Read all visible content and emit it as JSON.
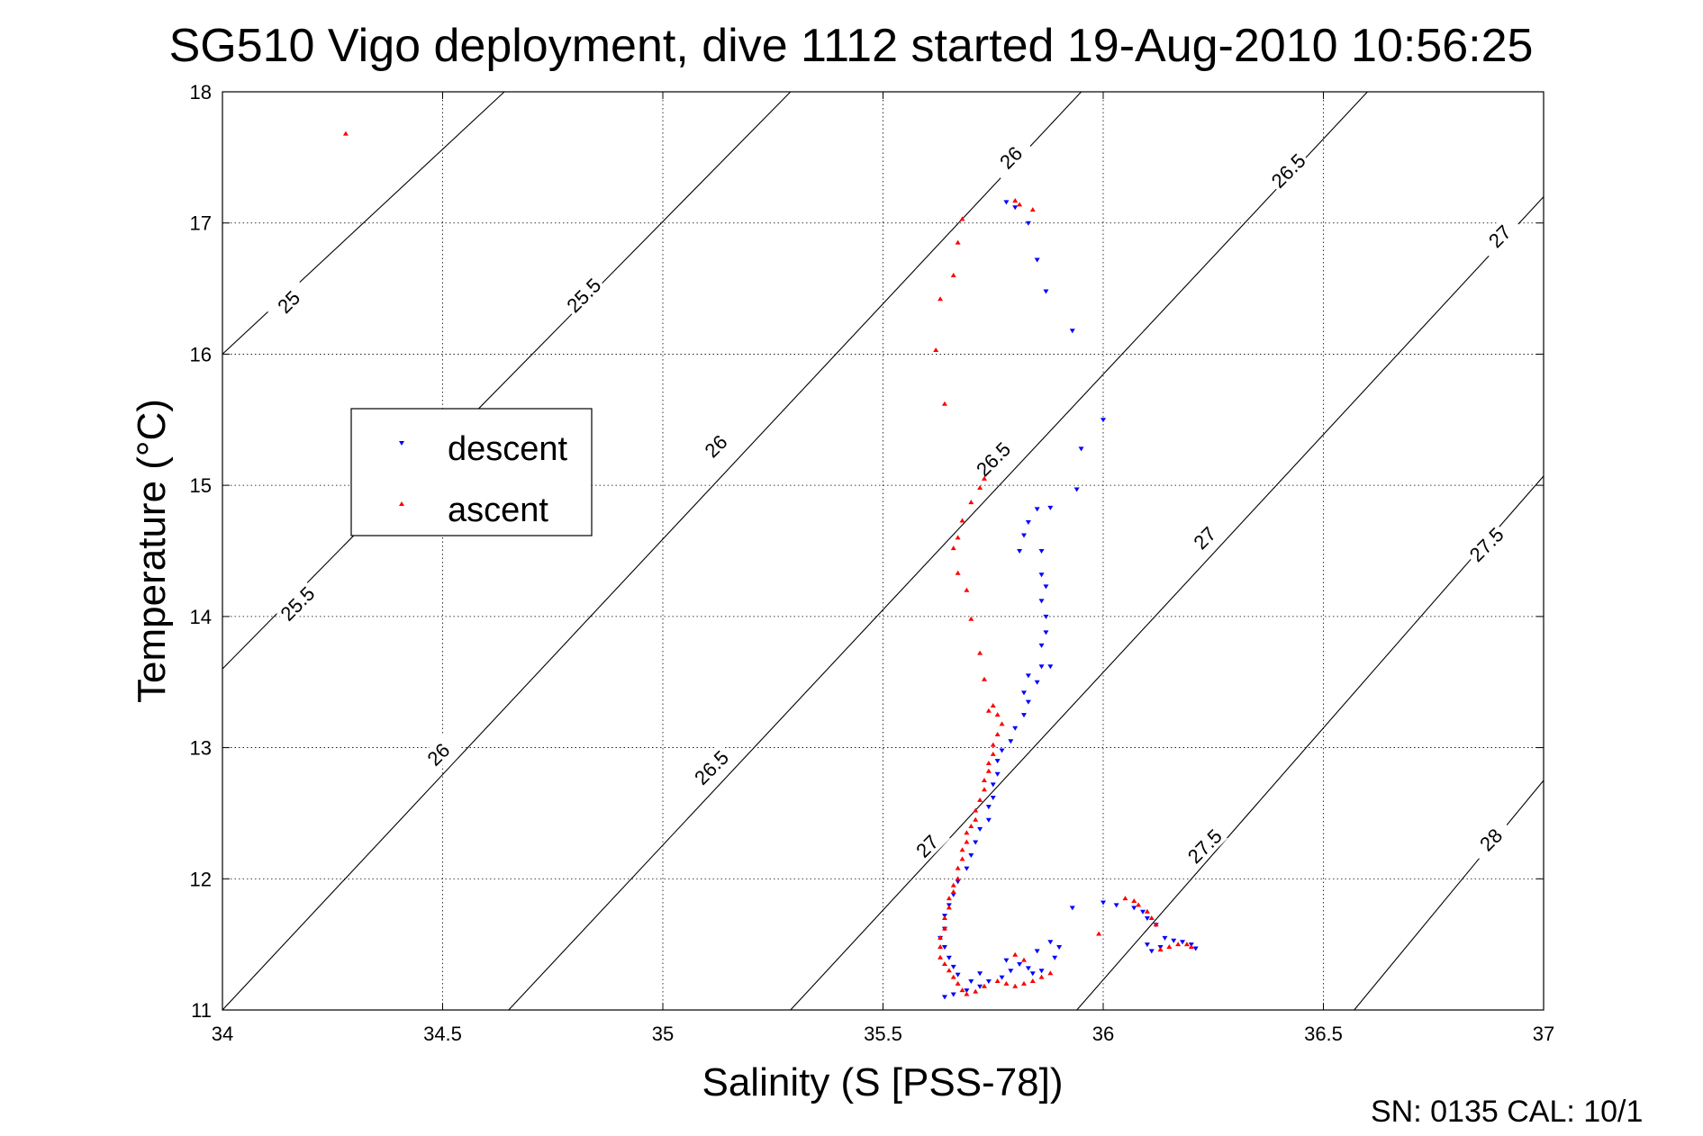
{
  "page": {
    "title": "SG510 Vigo deployment, dive 1112 started 19-Aug-2010 10:56:25",
    "footer": "SN: 0135  CAL: 10/1"
  },
  "chart_data": {
    "type": "scatter",
    "title": "SG510 Vigo deployment, dive 1112 started 19-Aug-2010 10:56:25",
    "xlabel": "Salinity (S [PSS-78])",
    "ylabel": "Temperature (°C)",
    "xlim": [
      34,
      37
    ],
    "ylim": [
      11,
      18
    ],
    "xticks": [
      34,
      34.5,
      35,
      35.5,
      36,
      36.5,
      37
    ],
    "xtick_labels": [
      "34",
      "34.5",
      "35",
      "35.5",
      "36",
      "36.5",
      "37"
    ],
    "yticks": [
      11,
      12,
      13,
      14,
      15,
      16,
      17,
      18
    ],
    "ytick_labels": [
      "11",
      "12",
      "13",
      "14",
      "15",
      "16",
      "17",
      "18"
    ],
    "grid": true,
    "grid_style": "dotted",
    "legend_position": "left-middle",
    "colors": {
      "descent": "#0000ff",
      "ascent": "#ff0000",
      "contour": "#000000"
    },
    "contours": [
      {
        "level": "25",
        "points": [
          [
            34.0,
            16.0
          ],
          [
            34.64,
            18.0
          ]
        ],
        "labels": [
          {
            "text": "25",
            "x": 34.15,
            "y": 16.4,
            "angle": -45
          }
        ]
      },
      {
        "level": "25.5",
        "points": [
          [
            34.0,
            13.6
          ],
          [
            35.29,
            18.0
          ]
        ],
        "labels": [
          {
            "text": "25.5",
            "x": 34.17,
            "y": 14.1,
            "angle": -45
          },
          {
            "text": "25.5",
            "x": 34.82,
            "y": 16.45,
            "angle": -45
          }
        ]
      },
      {
        "level": "26",
        "points": [
          [
            34.0,
            11.0
          ],
          [
            35.95,
            18.0
          ]
        ],
        "labels": [
          {
            "text": "26",
            "x": 34.49,
            "y": 12.95,
            "angle": -45
          },
          {
            "text": "26",
            "x": 35.12,
            "y": 15.3,
            "angle": -45
          },
          {
            "text": "26",
            "x": 35.79,
            "y": 17.5,
            "angle": -45
          }
        ]
      },
      {
        "level": "26.5",
        "points": [
          [
            34.65,
            11.0
          ],
          [
            36.6,
            18.0
          ]
        ],
        "labels": [
          {
            "text": "26.5",
            "x": 35.11,
            "y": 12.85,
            "angle": -45
          },
          {
            "text": "26.5",
            "x": 35.75,
            "y": 15.2,
            "angle": -45
          },
          {
            "text": "26.5",
            "x": 36.42,
            "y": 17.4,
            "angle": -45
          }
        ]
      },
      {
        "level": "27",
        "points": [
          [
            35.29,
            11.0
          ],
          [
            37.0,
            17.2
          ]
        ],
        "labels": [
          {
            "text": "27",
            "x": 35.6,
            "y": 12.25,
            "angle": -45
          },
          {
            "text": "27",
            "x": 36.23,
            "y": 14.6,
            "angle": -45
          },
          {
            "text": "27",
            "x": 36.9,
            "y": 16.9,
            "angle": -45
          }
        ]
      },
      {
        "level": "27.5",
        "points": [
          [
            35.94,
            11.0
          ],
          [
            37.0,
            15.07
          ]
        ],
        "labels": [
          {
            "text": "27.5",
            "x": 36.23,
            "y": 12.25,
            "angle": -45
          },
          {
            "text": "27.5",
            "x": 36.87,
            "y": 14.55,
            "angle": -45
          }
        ]
      },
      {
        "level": "28",
        "points": [
          [
            36.57,
            11.0
          ],
          [
            37.0,
            12.75
          ]
        ],
        "labels": [
          {
            "text": "28",
            "x": 36.88,
            "y": 12.3,
            "angle": -45
          }
        ]
      }
    ],
    "series": [
      {
        "name": "descent",
        "color": "#0000ff",
        "marker": "triangle-down",
        "points": [
          [
            35.78,
            17.16
          ],
          [
            35.8,
            17.12
          ],
          [
            35.83,
            17.0
          ],
          [
            35.85,
            16.72
          ],
          [
            35.87,
            16.48
          ],
          [
            35.93,
            16.18
          ],
          [
            36.0,
            15.5
          ],
          [
            35.95,
            15.28
          ],
          [
            35.94,
            14.97
          ],
          [
            35.88,
            14.83
          ],
          [
            35.85,
            14.82
          ],
          [
            35.83,
            14.72
          ],
          [
            35.82,
            14.62
          ],
          [
            35.81,
            14.5
          ],
          [
            35.86,
            14.5
          ],
          [
            35.86,
            14.32
          ],
          [
            35.87,
            14.23
          ],
          [
            35.86,
            14.12
          ],
          [
            35.87,
            14.0
          ],
          [
            35.87,
            13.88
          ],
          [
            35.86,
            13.78
          ],
          [
            35.86,
            13.62
          ],
          [
            35.88,
            13.62
          ],
          [
            35.83,
            13.55
          ],
          [
            35.85,
            13.5
          ],
          [
            35.82,
            13.42
          ],
          [
            35.83,
            13.35
          ],
          [
            35.82,
            13.25
          ],
          [
            35.8,
            13.15
          ],
          [
            35.79,
            13.05
          ],
          [
            35.77,
            12.98
          ],
          [
            35.76,
            12.9
          ],
          [
            35.76,
            12.8
          ],
          [
            35.75,
            12.72
          ],
          [
            35.75,
            12.62
          ],
          [
            35.74,
            12.55
          ],
          [
            35.74,
            12.45
          ],
          [
            35.72,
            12.38
          ],
          [
            35.71,
            12.28
          ],
          [
            35.7,
            12.18
          ],
          [
            35.69,
            12.08
          ],
          [
            35.67,
            11.98
          ],
          [
            35.66,
            11.88
          ],
          [
            35.65,
            11.8
          ],
          [
            35.64,
            11.72
          ],
          [
            35.64,
            11.62
          ],
          [
            35.63,
            11.55
          ],
          [
            35.64,
            11.48
          ],
          [
            35.65,
            11.4
          ],
          [
            35.66,
            11.33
          ],
          [
            35.67,
            11.27
          ],
          [
            35.7,
            11.22
          ],
          [
            35.72,
            11.18
          ],
          [
            35.74,
            11.22
          ],
          [
            35.77,
            11.25
          ],
          [
            35.79,
            11.3
          ],
          [
            35.81,
            11.35
          ],
          [
            35.83,
            11.32
          ],
          [
            35.84,
            11.28
          ],
          [
            35.86,
            11.3
          ],
          [
            35.89,
            11.4
          ],
          [
            35.9,
            11.48
          ],
          [
            35.88,
            11.52
          ],
          [
            35.85,
            11.45
          ],
          [
            35.78,
            11.38
          ],
          [
            35.72,
            11.28
          ],
          [
            35.69,
            11.15
          ],
          [
            35.66,
            11.12
          ],
          [
            35.64,
            11.1
          ],
          [
            35.93,
            11.78
          ],
          [
            36.0,
            11.82
          ],
          [
            36.03,
            11.8
          ],
          [
            36.07,
            11.78
          ],
          [
            36.09,
            11.75
          ],
          [
            36.1,
            11.7
          ],
          [
            36.12,
            11.65
          ],
          [
            36.14,
            11.55
          ],
          [
            36.16,
            11.53
          ],
          [
            36.18,
            11.52
          ],
          [
            36.2,
            11.5
          ],
          [
            36.21,
            11.47
          ],
          [
            36.13,
            11.48
          ],
          [
            36.11,
            11.45
          ],
          [
            36.1,
            11.5
          ]
        ]
      },
      {
        "name": "ascent",
        "color": "#ff0000",
        "marker": "triangle-up",
        "points": [
          [
            34.28,
            17.68
          ],
          [
            35.8,
            17.17
          ],
          [
            35.81,
            17.14
          ],
          [
            35.84,
            17.1
          ],
          [
            35.68,
            17.03
          ],
          [
            35.67,
            16.85
          ],
          [
            35.66,
            16.6
          ],
          [
            35.63,
            16.42
          ],
          [
            35.62,
            16.03
          ],
          [
            35.64,
            15.62
          ],
          [
            35.73,
            15.05
          ],
          [
            35.72,
            14.98
          ],
          [
            35.7,
            14.87
          ],
          [
            35.68,
            14.73
          ],
          [
            35.67,
            14.6
          ],
          [
            35.66,
            14.52
          ],
          [
            35.67,
            14.33
          ],
          [
            35.69,
            14.2
          ],
          [
            35.7,
            13.98
          ],
          [
            35.72,
            13.72
          ],
          [
            35.73,
            13.52
          ],
          [
            35.75,
            13.32
          ],
          [
            35.74,
            13.28
          ],
          [
            35.76,
            13.25
          ],
          [
            35.77,
            13.18
          ],
          [
            35.76,
            13.1
          ],
          [
            35.75,
            13.02
          ],
          [
            35.75,
            12.95
          ],
          [
            35.74,
            12.88
          ],
          [
            35.74,
            12.82
          ],
          [
            35.73,
            12.75
          ],
          [
            35.73,
            12.68
          ],
          [
            35.72,
            12.6
          ],
          [
            35.71,
            12.52
          ],
          [
            35.71,
            12.45
          ],
          [
            35.7,
            12.4
          ],
          [
            35.69,
            12.35
          ],
          [
            35.69,
            12.28
          ],
          [
            35.68,
            12.22
          ],
          [
            35.68,
            12.15
          ],
          [
            35.67,
            12.08
          ],
          [
            35.67,
            12.0
          ],
          [
            35.66,
            11.95
          ],
          [
            35.66,
            11.9
          ],
          [
            35.65,
            11.85
          ],
          [
            35.65,
            11.78
          ],
          [
            35.64,
            11.7
          ],
          [
            35.64,
            11.62
          ],
          [
            35.63,
            11.55
          ],
          [
            35.63,
            11.48
          ],
          [
            35.63,
            11.4
          ],
          [
            35.64,
            11.35
          ],
          [
            35.65,
            11.3
          ],
          [
            35.66,
            11.25
          ],
          [
            35.67,
            11.2
          ],
          [
            35.68,
            11.15
          ],
          [
            35.69,
            11.12
          ],
          [
            35.71,
            11.14
          ],
          [
            35.73,
            11.18
          ],
          [
            35.76,
            11.22
          ],
          [
            35.78,
            11.2
          ],
          [
            35.8,
            11.18
          ],
          [
            35.82,
            11.2
          ],
          [
            35.84,
            11.22
          ],
          [
            35.86,
            11.25
          ],
          [
            35.88,
            11.28
          ],
          [
            35.8,
            11.42
          ],
          [
            35.82,
            11.38
          ],
          [
            35.99,
            11.58
          ],
          [
            36.05,
            11.85
          ],
          [
            36.07,
            11.83
          ],
          [
            36.08,
            11.8
          ],
          [
            36.1,
            11.75
          ],
          [
            36.11,
            11.7
          ],
          [
            36.12,
            11.65
          ],
          [
            36.15,
            11.48
          ],
          [
            36.17,
            11.5
          ],
          [
            36.19,
            11.5
          ],
          [
            36.2,
            11.48
          ],
          [
            36.13,
            11.46
          ]
        ]
      }
    ]
  }
}
